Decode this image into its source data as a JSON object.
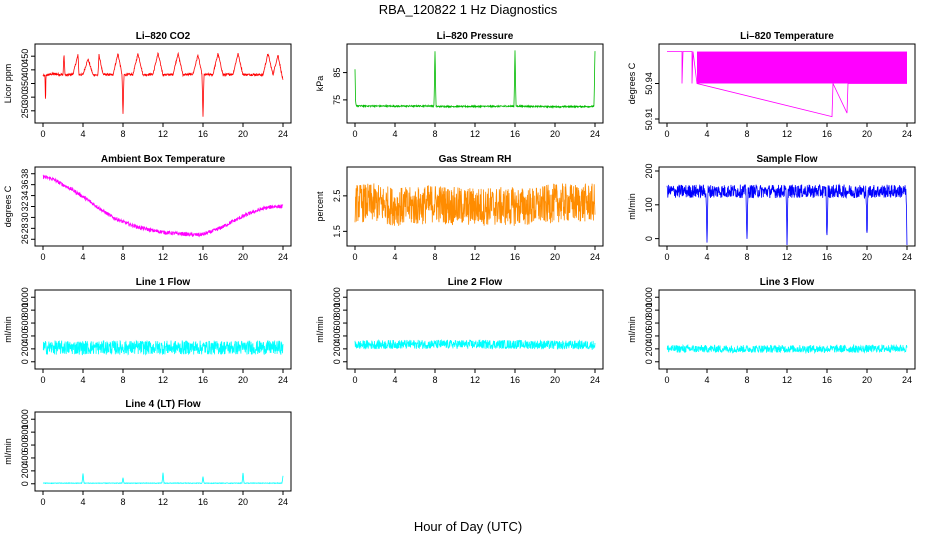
{
  "figure": {
    "title": "RBA_120822  1 Hz Diagnostics",
    "xlabel": "Hour of Day (UTC)"
  },
  "chart_data": [
    {
      "id": "co2",
      "type": "line",
      "title": "Li–820 CO2",
      "ylabel": "Licor ppm",
      "color": "#ff0000",
      "xlim": [
        0,
        24
      ],
      "ylim": [
        220,
        480
      ],
      "yticks": [
        "250",
        "300",
        "350",
        "400",
        "450"
      ],
      "yticks_values": [
        250,
        300,
        350,
        400,
        450
      ],
      "xticks": [
        "0",
        "4",
        "8",
        "12",
        "16",
        "20",
        "24"
      ],
      "xticks_values": [
        0,
        4,
        8,
        12,
        16,
        20,
        24
      ],
      "series": [
        {
          "x": [
            0,
            0.2,
            0.25,
            0.3,
            1,
            2,
            2.1,
            2.2,
            3,
            3.5,
            3.6,
            4,
            4.5,
            5,
            5.5,
            5.6,
            6,
            7,
            7.5,
            7.9,
            8,
            8.1,
            9,
            9.5,
            10,
            11,
            11.5,
            12,
            13,
            13.5,
            14,
            15,
            15.5,
            15.9,
            16,
            16.1,
            17,
            17.5,
            18,
            19,
            19.5,
            20,
            21,
            22,
            22.5,
            23,
            23.5,
            24
          ],
          "y": [
            380,
            378,
            270,
            380,
            385,
            382,
            460,
            380,
            384,
            455,
            382,
            383,
            440,
            382,
            381,
            455,
            383,
            382,
            460,
            382,
            235,
            382,
            383,
            460,
            382,
            384,
            460,
            382,
            383,
            460,
            382,
            384,
            455,
            382,
            225,
            382,
            383,
            460,
            382,
            384,
            460,
            382,
            383,
            382,
            460,
            382,
            455,
            360
          ]
        }
      ]
    },
    {
      "id": "pressure",
      "type": "line",
      "title": "Li–820 Pressure",
      "ylabel": "kPa",
      "color": "#00bb00",
      "xlim": [
        0,
        24
      ],
      "ylim": [
        68,
        94
      ],
      "yticks": [
        "75",
        "85"
      ],
      "yticks_values": [
        75,
        85
      ],
      "xticks": [
        "0",
        "4",
        "8",
        "12",
        "16",
        "20",
        "24"
      ],
      "xticks_values": [
        0,
        4,
        8,
        12,
        16,
        20,
        24
      ],
      "series": [
        {
          "x": [
            0,
            0.05,
            0.1,
            0.3,
            4,
            7.9,
            8,
            8.1,
            12,
            15.9,
            16,
            16.1,
            20,
            23.9,
            24
          ],
          "y": [
            86,
            75,
            73,
            72.8,
            72.7,
            72.8,
            93,
            72.6,
            72.6,
            72.7,
            93,
            72.7,
            72.5,
            72.6,
            93
          ]
        }
      ]
    },
    {
      "id": "licor-temp",
      "type": "line",
      "title": "Li–820 Temperature",
      "ylabel": "degrees C",
      "color": "#ff00ff",
      "xlim": [
        0,
        24
      ],
      "ylim": [
        50.91,
        50.97
      ],
      "yticks": [
        "50.91",
        "50.94"
      ],
      "yticks_values": [
        50.91,
        50.94
      ],
      "xticks": [
        "0",
        "4",
        "8",
        "12",
        "16",
        "20",
        "24"
      ],
      "xticks_values": [
        0,
        4,
        8,
        12,
        16,
        20,
        24
      ],
      "series": [
        {
          "x": [
            0,
            1.5,
            1.5,
            1.6,
            2.5,
            2.5,
            2.6,
            3,
            16.5,
            16.6,
            18,
            18.1,
            24
          ],
          "y": [
            50.967,
            50.967,
            50.94,
            50.967,
            50.967,
            50.94,
            50.967,
            50.94,
            50.912,
            50.94,
            50.915,
            50.94,
            50.94
          ]
        }
      ]
    },
    {
      "id": "box-temp",
      "type": "line",
      "title": "Ambient Box Temperature",
      "ylabel": "degrees C",
      "color": "#ff00ff",
      "xlim": [
        0,
        24
      ],
      "ylim": [
        25.5,
        38.5
      ],
      "yticks": [
        "26",
        "28",
        "30",
        "32",
        "34",
        "36",
        "38"
      ],
      "yticks_values": [
        26,
        28,
        30,
        32,
        34,
        36,
        38
      ],
      "xticks": [
        "0",
        "4",
        "8",
        "12",
        "16",
        "20",
        "24"
      ],
      "xticks_values": [
        0,
        4,
        8,
        12,
        16,
        20,
        24
      ],
      "series": [
        {
          "x": [
            0,
            1,
            2,
            3,
            4,
            5,
            6,
            7,
            8,
            9,
            10,
            11,
            12,
            13,
            14,
            15,
            16,
            17,
            18,
            19,
            20,
            21,
            22,
            23,
            24
          ],
          "y": [
            37.5,
            37,
            36,
            35,
            33.8,
            32.5,
            31.2,
            30,
            29.2,
            28.5,
            28,
            27.6,
            27.3,
            27.1,
            27,
            26.8,
            26.9,
            27.5,
            28.3,
            29.3,
            30.2,
            31,
            31.6,
            32,
            32
          ]
        }
      ]
    },
    {
      "id": "rh",
      "type": "line",
      "title": "Gas Stream RH",
      "ylabel": "percent",
      "color": "#ff8c00",
      "xlim": [
        0,
        24
      ],
      "ylim": [
        1.2,
        3.2
      ],
      "yticks": [
        "1.5",
        "2.5"
      ],
      "yticks_values": [
        1.5,
        2.5
      ],
      "xticks": [
        "0",
        "4",
        "8",
        "12",
        "16",
        "20",
        "24"
      ],
      "xticks_values": [
        0,
        4,
        8,
        12,
        16,
        20,
        24
      ],
      "series": [
        {
          "x": [
            0,
            2,
            4,
            6,
            8,
            10,
            12,
            14,
            16,
            18,
            20,
            22,
            24
          ],
          "y": [
            2.3,
            2.3,
            2.2,
            2.2,
            2.3,
            2.2,
            2.2,
            2.2,
            2.2,
            2.2,
            2.3,
            2.3,
            2.3
          ]
        }
      ]
    },
    {
      "id": "sample-flow",
      "type": "line",
      "title": "Sample Flow",
      "ylabel": "ml/min",
      "color": "#0000ff",
      "xlim": [
        0,
        24
      ],
      "ylim": [
        -10,
        200
      ],
      "yticks": [
        "0",
        "100",
        "200"
      ],
      "yticks_values": [
        0,
        100,
        200
      ],
      "xticks": [
        "0",
        "4",
        "8",
        "12",
        "16",
        "20",
        "24"
      ],
      "xticks_values": [
        0,
        4,
        8,
        12,
        16,
        20,
        24
      ],
      "series": [
        {
          "x": [
            0,
            2,
            3.9,
            4,
            4.1,
            6,
            7.9,
            8,
            8.1,
            10,
            11.9,
            12,
            12.1,
            14,
            15.9,
            16,
            16.1,
            18,
            19.9,
            20,
            20.1,
            22,
            23.9,
            24
          ],
          "y": [
            140,
            140,
            140,
            -5,
            140,
            140,
            140,
            -5,
            140,
            140,
            140,
            -5,
            140,
            140,
            140,
            -5,
            140,
            140,
            140,
            0,
            140,
            140,
            140,
            -5
          ]
        }
      ]
    },
    {
      "id": "line1",
      "type": "line",
      "title": "Line 1 Flow",
      "ylabel": "ml/min",
      "color": "#00ffff",
      "xlim": [
        0,
        24
      ],
      "ylim": [
        -50,
        1050
      ],
      "yticks": [
        "0",
        "200",
        "400",
        "600",
        "800",
        "1000"
      ],
      "yticks_values": [
        0,
        200,
        400,
        600,
        800,
        1000
      ],
      "xticks": [
        "0",
        "4",
        "8",
        "12",
        "16",
        "20",
        "24"
      ],
      "xticks_values": [
        0,
        4,
        8,
        12,
        16,
        20,
        24
      ],
      "series": [
        {
          "x": [
            0,
            4,
            8,
            12,
            16,
            20,
            24
          ],
          "y": [
            220,
            220,
            220,
            220,
            220,
            220,
            220
          ]
        }
      ]
    },
    {
      "id": "line2",
      "type": "line",
      "title": "Line 2 Flow",
      "ylabel": "ml/min",
      "color": "#00ffff",
      "xlim": [
        0,
        24
      ],
      "ylim": [
        -50,
        1050
      ],
      "yticks": [
        "0",
        "200",
        "400",
        "600",
        "800",
        "1000"
      ],
      "yticks_values": [
        0,
        200,
        400,
        600,
        800,
        1000
      ],
      "xticks": [
        "0",
        "4",
        "8",
        "12",
        "16",
        "20",
        "24"
      ],
      "xticks_values": [
        0,
        4,
        8,
        12,
        16,
        20,
        24
      ],
      "series": [
        {
          "x": [
            0,
            4,
            8,
            12,
            16,
            20,
            24
          ],
          "y": [
            260,
            270,
            270,
            270,
            270,
            260,
            260
          ]
        }
      ]
    },
    {
      "id": "line3",
      "type": "line",
      "title": "Line 3 Flow",
      "ylabel": "ml/min",
      "color": "#00ffff",
      "xlim": [
        0,
        24
      ],
      "ylim": [
        -50,
        1050
      ],
      "yticks": [
        "0",
        "200",
        "400",
        "600",
        "800",
        "1000"
      ],
      "yticks_values": [
        0,
        200,
        400,
        600,
        800,
        1000
      ],
      "xticks": [
        "0",
        "4",
        "8",
        "12",
        "16",
        "20",
        "24"
      ],
      "xticks_values": [
        0,
        4,
        8,
        12,
        16,
        20,
        24
      ],
      "series": [
        {
          "x": [
            0,
            4,
            8,
            12,
            16,
            20,
            24
          ],
          "y": [
            200,
            200,
            200,
            200,
            200,
            200,
            210
          ]
        }
      ]
    },
    {
      "id": "line4",
      "type": "line",
      "title": "Line 4 (LT) Flow",
      "ylabel": "ml/min",
      "color": "#00ffff",
      "xlim": [
        0,
        24
      ],
      "ylim": [
        -50,
        1050
      ],
      "yticks": [
        "0",
        "200",
        "400",
        "600",
        "800",
        "1000"
      ],
      "yticks_values": [
        0,
        200,
        400,
        600,
        800,
        1000
      ],
      "xticks": [
        "0",
        "4",
        "8",
        "12",
        "16",
        "20",
        "24"
      ],
      "xticks_values": [
        0,
        4,
        8,
        12,
        16,
        20,
        24
      ],
      "series": [
        {
          "x": [
            0,
            3.9,
            4,
            4.1,
            7.9,
            8,
            8.1,
            11.9,
            12,
            12.1,
            15.9,
            16,
            16.1,
            19.9,
            20,
            20.1,
            23.9,
            24
          ],
          "y": [
            10,
            10,
            160,
            10,
            10,
            90,
            10,
            10,
            170,
            10,
            10,
            110,
            10,
            10,
            170,
            10,
            10,
            120
          ]
        }
      ]
    }
  ]
}
